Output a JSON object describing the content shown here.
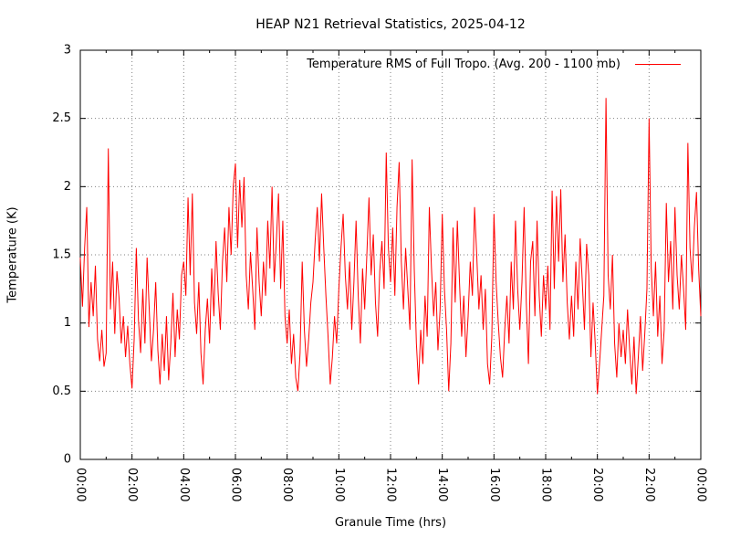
{
  "chart_data": {
    "type": "line",
    "title": "HEAP N21 Retrieval Statistics, 2025-04-12",
    "xlabel": "Granule Time (hrs)",
    "ylabel": "Temperature (K)",
    "xlim_hours": [
      0,
      24
    ],
    "ylim": [
      0,
      3
    ],
    "grid": "dotted",
    "legend_position": "top-inside",
    "colors": {
      "series": "#ff0000",
      "grid": "#808080",
      "axis": "#000000",
      "background": "#ffffff"
    },
    "x_major_ticks": [
      {
        "hour": 0,
        "label": "00:00"
      },
      {
        "hour": 2,
        "label": "02:00"
      },
      {
        "hour": 4,
        "label": "04:00"
      },
      {
        "hour": 6,
        "label": "06:00"
      },
      {
        "hour": 8,
        "label": "08:00"
      },
      {
        "hour": 10,
        "label": "10:00"
      },
      {
        "hour": 12,
        "label": "12:00"
      },
      {
        "hour": 14,
        "label": "14:00"
      },
      {
        "hour": 16,
        "label": "16:00"
      },
      {
        "hour": 18,
        "label": "18:00"
      },
      {
        "hour": 20,
        "label": "20:00"
      },
      {
        "hour": 22,
        "label": "22:00"
      },
      {
        "hour": 24,
        "label": "00:00"
      }
    ],
    "x_minor_tick_hours": [
      1,
      3,
      5,
      7,
      9,
      11,
      13,
      15,
      17,
      19,
      21,
      23
    ],
    "y_ticks": [
      {
        "value": 0,
        "label": "0"
      },
      {
        "value": 0.5,
        "label": "0.5"
      },
      {
        "value": 1,
        "label": "1"
      },
      {
        "value": 1.5,
        "label": "1.5"
      },
      {
        "value": 2,
        "label": "2"
      },
      {
        "value": 2.5,
        "label": "2.5"
      },
      {
        "value": 3,
        "label": "3"
      }
    ],
    "series": [
      {
        "name": "Temperature RMS of Full Tropo. (Avg. 200 - 1100 mb)",
        "color": "#ff0000",
        "x_start_hours": 0,
        "x_step_hours": 0.0833333,
        "values": [
          1.48,
          1.12,
          1.55,
          1.85,
          0.97,
          1.3,
          1.05,
          1.42,
          0.88,
          0.72,
          0.95,
          0.68,
          0.78,
          2.28,
          1.1,
          1.45,
          0.92,
          1.38,
          1.18,
          0.85,
          1.05,
          0.75,
          0.98,
          0.7,
          0.52,
          0.88,
          1.55,
          1.02,
          0.78,
          1.25,
          0.85,
          1.48,
          1.1,
          0.72,
          0.95,
          1.3,
          0.8,
          0.55,
          0.92,
          0.65,
          1.05,
          0.58,
          0.85,
          1.22,
          0.75,
          1.1,
          0.88,
          1.35,
          1.45,
          1.2,
          1.92,
          1.35,
          1.95,
          1.15,
          0.92,
          1.3,
          0.78,
          0.55,
          0.95,
          1.18,
          0.85,
          1.4,
          1.05,
          1.6,
          1.22,
          0.95,
          1.45,
          1.7,
          1.3,
          1.85,
          1.5,
          2.0,
          2.17,
          1.55,
          2.05,
          1.7,
          2.07,
          1.35,
          1.1,
          1.52,
          1.25,
          0.95,
          1.7,
          1.3,
          1.05,
          1.45,
          1.2,
          1.75,
          1.4,
          2.0,
          1.3,
          1.6,
          1.95,
          1.25,
          1.75,
          1.05,
          0.85,
          1.1,
          0.7,
          0.92,
          0.6,
          0.5,
          0.78,
          1.45,
          0.95,
          0.68,
          0.88,
          1.15,
          1.3,
          1.6,
          1.85,
          1.45,
          1.95,
          1.55,
          1.2,
          0.9,
          0.55,
          0.75,
          1.05,
          0.85,
          1.25,
          1.55,
          1.8,
          1.35,
          1.1,
          1.45,
          0.95,
          1.3,
          1.75,
          1.2,
          0.85,
          1.4,
          1.1,
          1.5,
          1.92,
          1.35,
          1.65,
          1.15,
          0.9,
          1.38,
          1.6,
          1.25,
          2.25,
          1.55,
          1.3,
          1.7,
          1.2,
          1.85,
          2.18,
          1.45,
          1.1,
          1.55,
          1.25,
          0.95,
          2.2,
          1.4,
          0.85,
          0.55,
          0.95,
          0.7,
          1.2,
          0.9,
          1.85,
          1.4,
          1.05,
          1.3,
          0.8,
          1.1,
          1.8,
          1.25,
          0.95,
          0.5,
          0.85,
          1.7,
          1.15,
          1.75,
          1.3,
          0.9,
          1.2,
          0.75,
          1.05,
          1.45,
          1.2,
          1.85,
          1.5,
          1.1,
          1.35,
          0.95,
          1.25,
          0.7,
          0.55,
          0.9,
          1.8,
          1.3,
          1.0,
          0.75,
          0.6,
          0.95,
          1.2,
          0.85,
          1.45,
          1.1,
          1.75,
          1.25,
          0.95,
          1.3,
          1.85,
          1.15,
          0.7,
          1.45,
          1.6,
          1.05,
          1.75,
          1.2,
          0.9,
          1.35,
          1.1,
          1.42,
          0.95,
          1.97,
          1.25,
          1.93,
          1.45,
          1.98,
          1.3,
          1.65,
          1.15,
          0.88,
          1.2,
          0.9,
          1.45,
          1.1,
          1.62,
          1.3,
          0.95,
          1.58,
          1.35,
          0.75,
          1.15,
          0.85,
          0.48,
          0.7,
          0.95,
          1.2,
          2.65,
          1.35,
          1.1,
          1.5,
          0.85,
          0.6,
          1.0,
          0.75,
          0.95,
          0.7,
          1.1,
          0.8,
          0.55,
          0.9,
          0.48,
          0.75,
          1.05,
          0.65,
          0.92,
          1.25,
          2.5,
          1.4,
          1.05,
          1.45,
          0.9,
          1.2,
          0.7,
          0.95,
          1.88,
          1.3,
          1.6,
          1.1,
          1.85,
          1.35,
          1.1,
          1.5,
          1.25,
          0.95,
          2.32,
          1.55,
          1.3,
          1.7,
          1.96,
          1.4,
          1.05
        ]
      }
    ]
  }
}
